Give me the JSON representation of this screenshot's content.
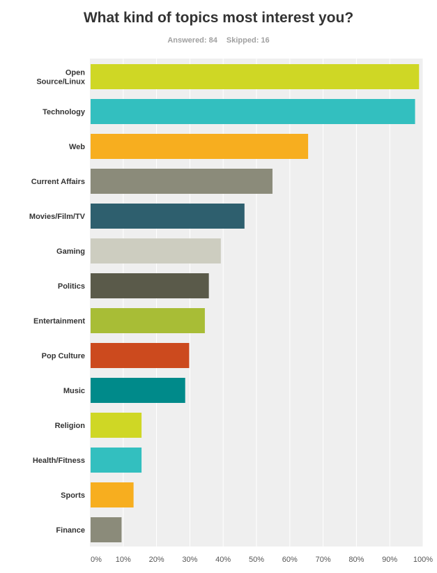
{
  "title": "What kind of topics most interest you?",
  "stats": {
    "answered": "Answered: 84",
    "skipped": "Skipped: 16"
  },
  "chart_data": {
    "type": "bar",
    "orientation": "horizontal",
    "categories": [
      "Open Source/Linux",
      "Technology",
      "Web",
      "Current Affairs",
      "Movies/Film/TV",
      "Gaming",
      "Politics",
      "Entertainment",
      "Pop Culture",
      "Music",
      "Religion",
      "Health/Fitness",
      "Sports",
      "Finance"
    ],
    "category_lines": [
      [
        "Open",
        "Source/Linux"
      ],
      [
        "Technology"
      ],
      [
        "Web"
      ],
      [
        "Current Affairs"
      ],
      [
        "Movies/Film/TV"
      ],
      [
        "Gaming"
      ],
      [
        "Politics"
      ],
      [
        "Entertainment"
      ],
      [
        "Pop Culture"
      ],
      [
        "Music"
      ],
      [
        "Religion"
      ],
      [
        "Health/Fitness"
      ],
      [
        "Sports"
      ],
      [
        "Finance"
      ]
    ],
    "values": [
      98.8,
      97.6,
      65.5,
      54.8,
      46.4,
      39.3,
      35.7,
      34.5,
      29.8,
      28.6,
      15.5,
      15.5,
      13.1,
      9.5
    ],
    "colors": [
      "#cfd725",
      "#33bfbf",
      "#f7ae1f",
      "#8b8b7a",
      "#2e5f6e",
      "#cdcdc0",
      "#5a5a4a",
      "#a8bd36",
      "#cc4a1e",
      "#008a8a",
      "#cfd725",
      "#33bfbf",
      "#f7ae1f",
      "#8b8b7a"
    ],
    "x_ticks": [
      "0%",
      "10%",
      "20%",
      "30%",
      "40%",
      "50%",
      "60%",
      "70%",
      "80%",
      "90%",
      "100%"
    ],
    "xlim": [
      0,
      100
    ],
    "grid": true,
    "legend": "none"
  }
}
